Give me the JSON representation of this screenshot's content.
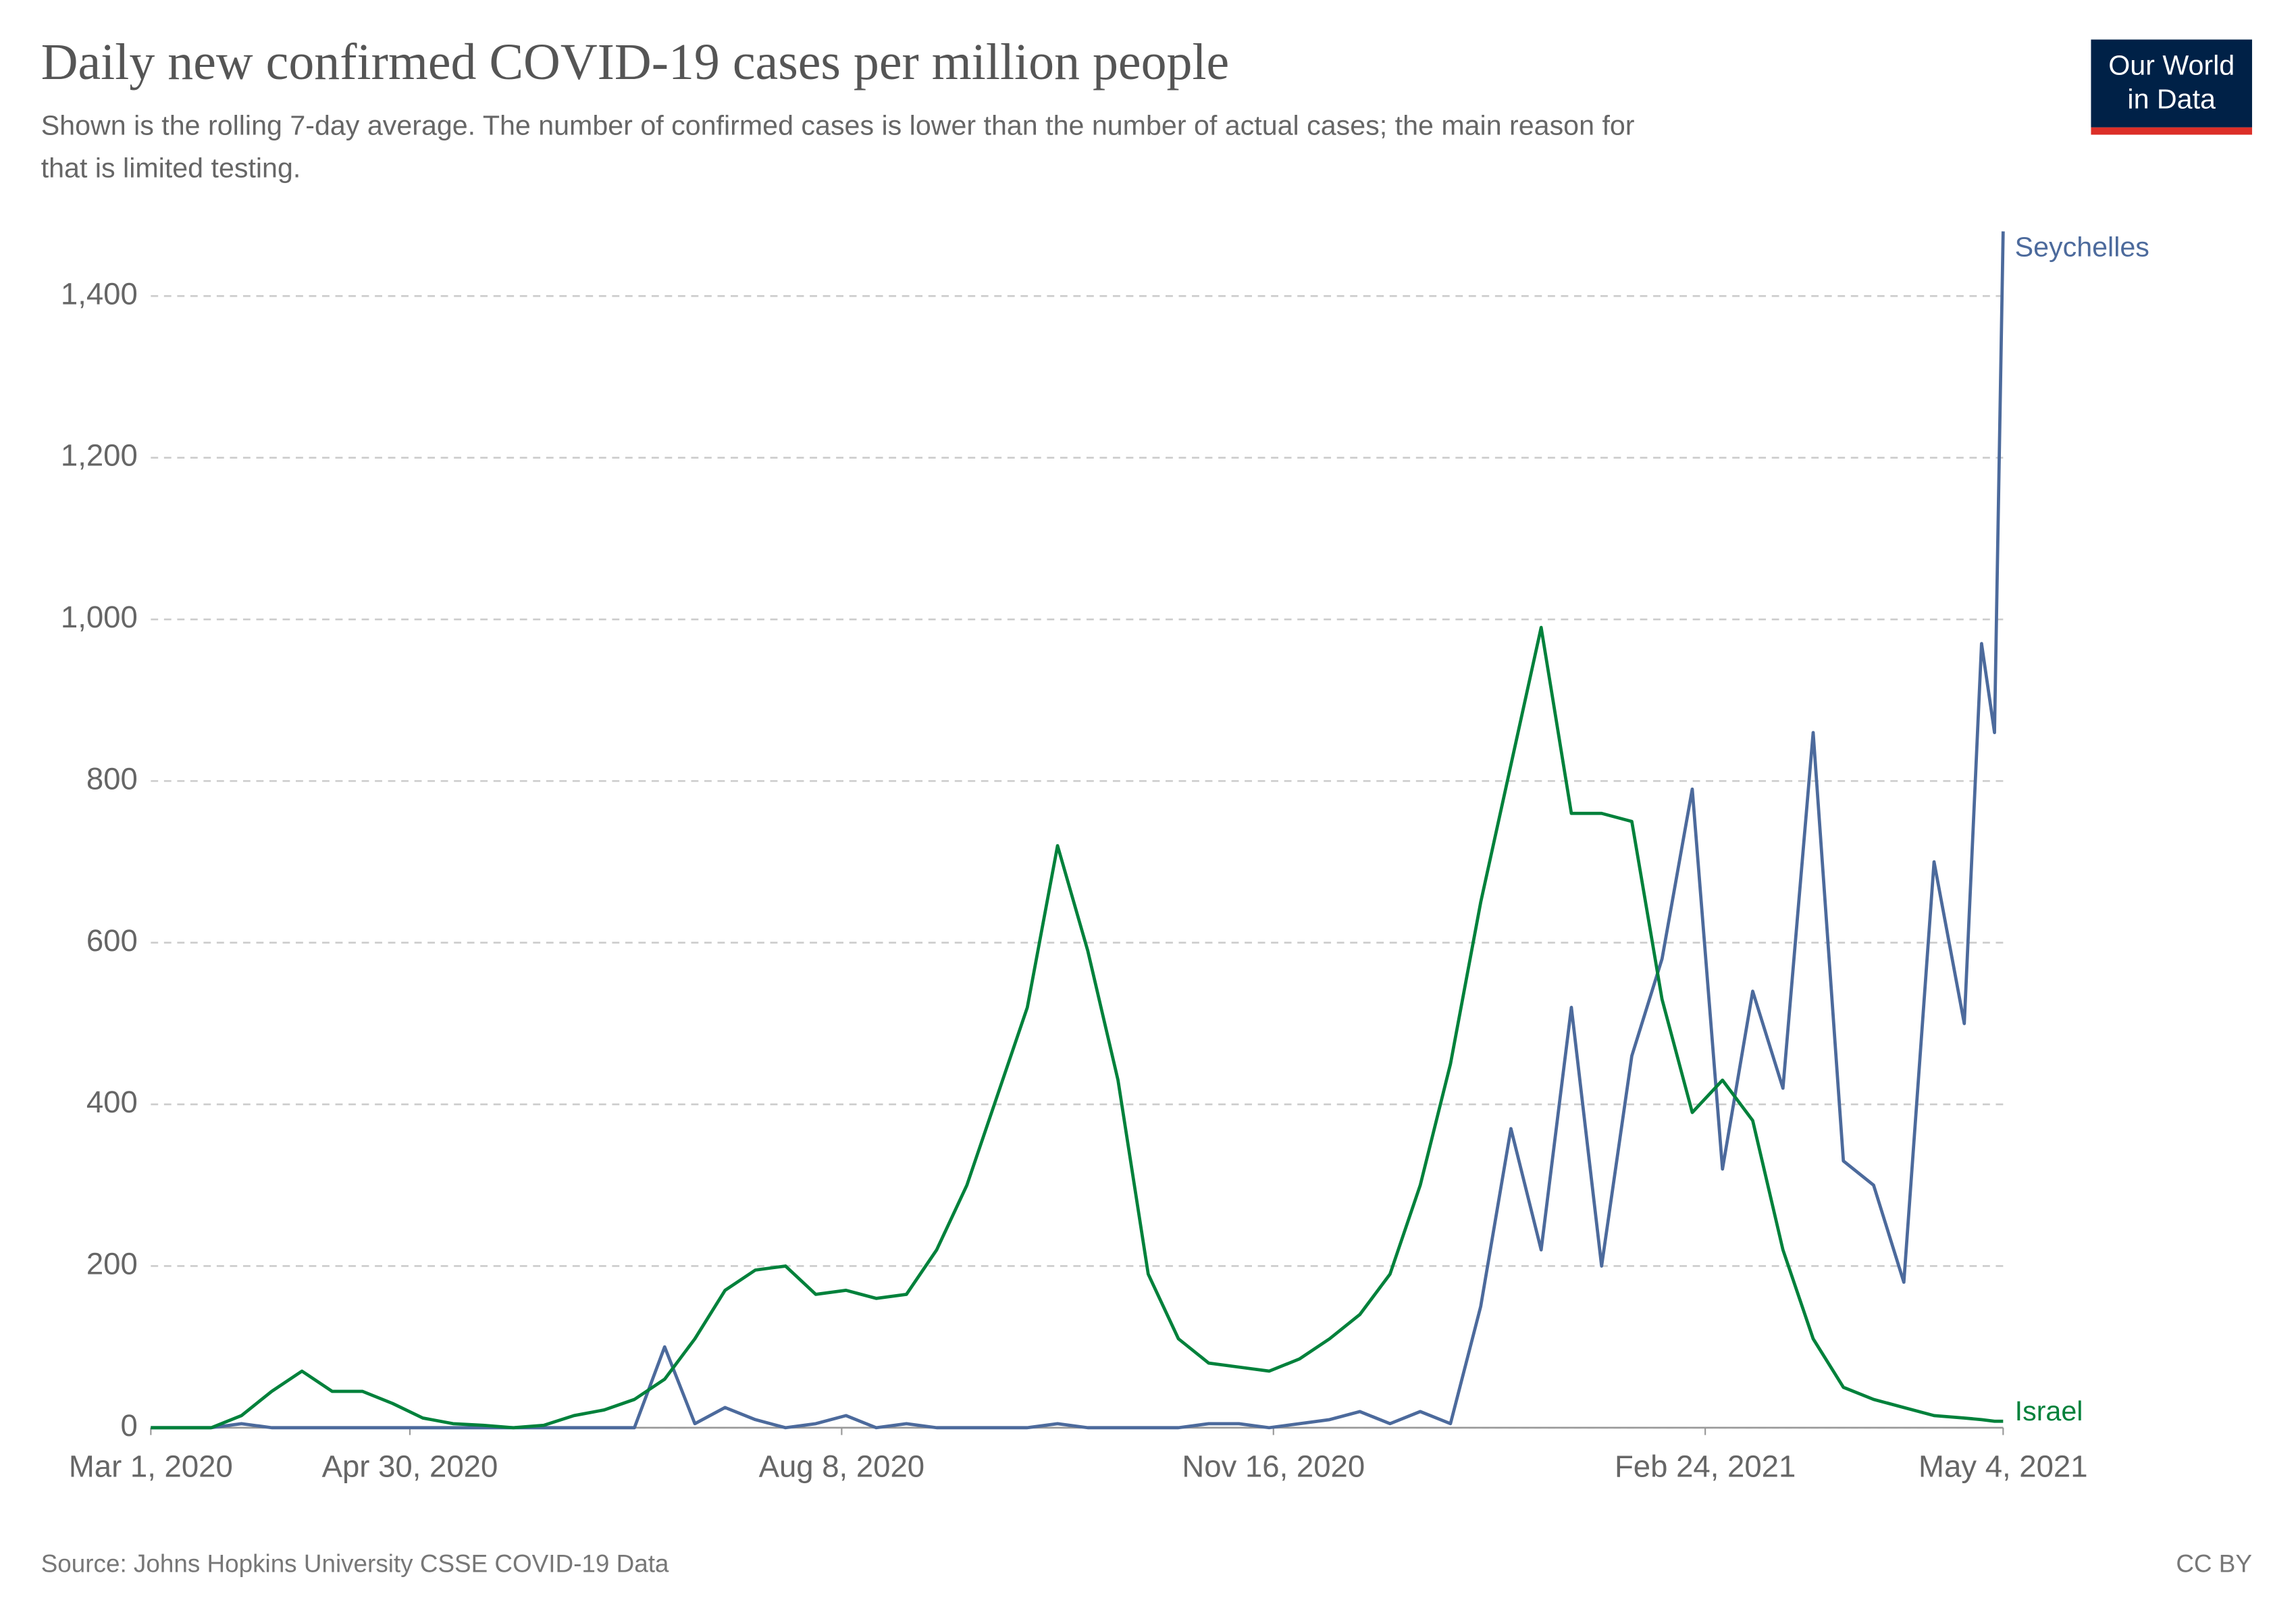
{
  "chart_data": {
    "type": "line",
    "title": "Daily new confirmed COVID-19 cases per million people",
    "subtitle": [
      "Shown is the rolling 7-day average. The number of confirmed cases is lower than the number of actual cases; the main reason for",
      "that is limited testing."
    ],
    "logo": [
      "Our World",
      "in Data"
    ],
    "source": "Source: Johns Hopkins University CSSE COVID-19 Data",
    "license": "CC BY",
    "x": [
      "2020-03-01",
      "2020-03-08",
      "2020-03-15",
      "2020-03-22",
      "2020-03-29",
      "2020-04-05",
      "2020-04-12",
      "2020-04-19",
      "2020-04-26",
      "2020-05-03",
      "2020-05-10",
      "2020-05-17",
      "2020-05-24",
      "2020-05-31",
      "2020-06-07",
      "2020-06-14",
      "2020-06-21",
      "2020-06-28",
      "2020-07-05",
      "2020-07-12",
      "2020-07-19",
      "2020-07-26",
      "2020-08-02",
      "2020-08-09",
      "2020-08-16",
      "2020-08-23",
      "2020-08-30",
      "2020-09-06",
      "2020-09-13",
      "2020-09-20",
      "2020-09-27",
      "2020-10-04",
      "2020-10-11",
      "2020-10-18",
      "2020-10-25",
      "2020-11-01",
      "2020-11-08",
      "2020-11-15",
      "2020-11-22",
      "2020-11-29",
      "2020-12-06",
      "2020-12-13",
      "2020-12-20",
      "2020-12-27",
      "2021-01-03",
      "2021-01-10",
      "2021-01-17",
      "2021-01-24",
      "2021-01-31",
      "2021-02-07",
      "2021-02-14",
      "2021-02-21",
      "2021-02-28",
      "2021-03-07",
      "2021-03-14",
      "2021-03-21",
      "2021-03-28",
      "2021-04-04",
      "2021-04-11",
      "2021-04-18",
      "2021-04-25",
      "2021-04-29",
      "2021-05-02",
      "2021-05-04"
    ],
    "series": [
      {
        "name": "Seychelles",
        "color": "#4c6a9c",
        "values": [
          0,
          0,
          0,
          5,
          0,
          0,
          0,
          0,
          0,
          0,
          0,
          0,
          0,
          0,
          0,
          0,
          0,
          100,
          5,
          25,
          10,
          0,
          5,
          15,
          0,
          5,
          0,
          0,
          0,
          0,
          5,
          0,
          0,
          0,
          0,
          5,
          5,
          0,
          5,
          10,
          20,
          5,
          20,
          5,
          150,
          370,
          220,
          520,
          200,
          460,
          580,
          790,
          320,
          540,
          420,
          860,
          330,
          300,
          180,
          700,
          500,
          970,
          860,
          1480
        ]
      },
      {
        "name": "Israel",
        "color": "#00813b",
        "values": [
          0,
          0,
          0,
          15,
          45,
          70,
          45,
          45,
          30,
          12,
          5,
          3,
          0,
          3,
          15,
          22,
          35,
          60,
          110,
          170,
          195,
          200,
          165,
          170,
          160,
          165,
          220,
          300,
          410,
          520,
          720,
          590,
          430,
          190,
          110,
          80,
          75,
          70,
          85,
          110,
          140,
          190,
          300,
          450,
          650,
          820,
          990,
          760,
          760,
          750,
          530,
          390,
          430,
          380,
          220,
          110,
          50,
          35,
          25,
          15,
          12,
          10,
          8,
          8
        ]
      }
    ],
    "xlim": [
      "2020-03-01",
      "2021-05-04"
    ],
    "xticks": [
      {
        "value": "2020-03-01",
        "label": "Mar 1, 2020"
      },
      {
        "value": "2020-04-30",
        "label": "Apr 30, 2020"
      },
      {
        "value": "2020-08-08",
        "label": "Aug 8, 2020"
      },
      {
        "value": "2020-11-16",
        "label": "Nov 16, 2020"
      },
      {
        "value": "2021-02-24",
        "label": "Feb 24, 2021"
      },
      {
        "value": "2021-05-04",
        "label": "May 4, 2021"
      }
    ],
    "ylim": [
      0,
      1480
    ],
    "yticks": [
      0,
      200,
      400,
      600,
      800,
      {
        "value": 1000,
        "label": "1,000"
      },
      {
        "value": 1200,
        "label": "1,200"
      },
      {
        "value": 1400,
        "label": "1,400"
      }
    ],
    "grid": true
  }
}
